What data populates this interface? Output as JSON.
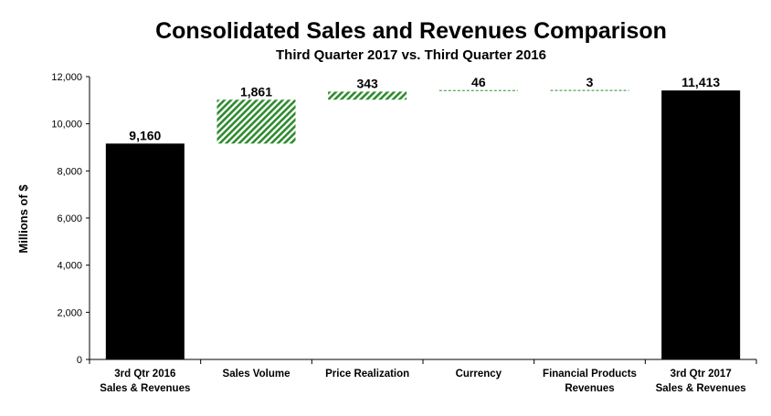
{
  "chart_data": {
    "type": "bar",
    "subtype": "waterfall",
    "title": "Consolidated Sales and Revenues Comparison",
    "subtitle": "Third Quarter 2017 vs. Third Quarter 2016",
    "ylabel": "Millions of $",
    "xlabel": "",
    "ylim": [
      0,
      12000
    ],
    "yticks": [
      0,
      2000,
      4000,
      6000,
      8000,
      10000,
      12000
    ],
    "ytick_labels": [
      "0",
      "2,000",
      "4,000",
      "6,000",
      "8,000",
      "10,000",
      "12,000"
    ],
    "grid": false,
    "categories": [
      [
        "3rd Qtr 2016",
        "Sales & Revenues"
      ],
      [
        "Sales Volume"
      ],
      [
        "Price Realization"
      ],
      [
        "Currency"
      ],
      [
        "Financial Products",
        "Revenues"
      ],
      [
        "3rd Qtr 2017",
        "Sales & Revenues"
      ]
    ],
    "values": [
      9160,
      1861,
      343,
      46,
      3,
      11413
    ],
    "data_labels": [
      "9,160",
      "1,861",
      "343",
      "46",
      "3",
      "11,413"
    ],
    "kinds": [
      "total",
      "increase",
      "increase",
      "increase",
      "increase",
      "total"
    ],
    "colors": {
      "total": "#000000",
      "increase": "#2e8b2e"
    }
  }
}
